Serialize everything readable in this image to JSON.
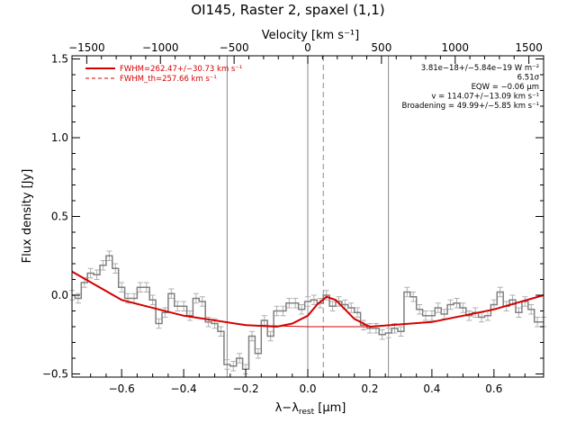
{
  "chart_data": {
    "type": "line",
    "title": "OI145, Raster 2, spaxel (1,1)",
    "xlabel": "λ−λ",
    "xlabel_sub": "rest",
    "xlabel_unit": " [μm]",
    "ylabel": "Flux density [Jy]",
    "top_xlabel": "Velocity [km s⁻¹]",
    "xlim": [
      -0.76,
      0.76
    ],
    "ylim": [
      -0.52,
      1.52
    ],
    "top_xlim": [
      -1600,
      1600
    ],
    "x_ticks": [
      -0.6,
      -0.4,
      -0.2,
      0.0,
      0.2,
      0.4,
      0.6
    ],
    "x_tick_labels": [
      "−0.6",
      "−0.4",
      "−0.2",
      "0.0",
      "0.2",
      "0.4",
      "0.6"
    ],
    "y_ticks": [
      -0.5,
      0.0,
      0.5,
      1.0,
      1.5
    ],
    "y_tick_labels": [
      "−0.5",
      "0.0",
      "0.5",
      "1.0",
      "1.5"
    ],
    "top_ticks": [
      -1500,
      -1000,
      -500,
      0,
      500,
      1000,
      1500
    ],
    "top_tick_labels": [
      "−1500",
      "−1000",
      "−500",
      "0",
      "500",
      "1000",
      "1500"
    ],
    "vertical_lines": [
      -0.26,
      0.0,
      0.26
    ],
    "dashed_vertical_line": 0.05,
    "spectrum": {
      "x": [
        -0.76,
        -0.74,
        -0.72,
        -0.7,
        -0.68,
        -0.66,
        -0.64,
        -0.62,
        -0.6,
        -0.58,
        -0.56,
        -0.54,
        -0.52,
        -0.5,
        -0.48,
        -0.46,
        -0.44,
        -0.42,
        -0.4,
        -0.38,
        -0.36,
        -0.34,
        -0.32,
        -0.3,
        -0.28,
        -0.26,
        -0.24,
        -0.22,
        -0.2,
        -0.18,
        -0.16,
        -0.14,
        -0.12,
        -0.1,
        -0.08,
        -0.06,
        -0.04,
        -0.02,
        0.0,
        0.02,
        0.04,
        0.06,
        0.08,
        0.1,
        0.12,
        0.14,
        0.16,
        0.18,
        0.2,
        0.22,
        0.24,
        0.26,
        0.28,
        0.3,
        0.32,
        0.34,
        0.36,
        0.38,
        0.4,
        0.42,
        0.44,
        0.46,
        0.48,
        0.5,
        0.52,
        0.54,
        0.56,
        0.58,
        0.6,
        0.62,
        0.64,
        0.66,
        0.68,
        0.7,
        0.72,
        0.74,
        0.76
      ],
      "y": [
        -0.0,
        -0.02,
        0.08,
        0.14,
        0.13,
        0.19,
        0.25,
        0.17,
        0.05,
        -0.02,
        -0.02,
        0.05,
        0.05,
        -0.03,
        -0.18,
        -0.11,
        0.01,
        -0.07,
        -0.07,
        -0.13,
        -0.02,
        -0.04,
        -0.17,
        -0.18,
        -0.23,
        -0.44,
        -0.45,
        -0.4,
        -0.47,
        -0.26,
        -0.37,
        -0.16,
        -0.26,
        -0.1,
        -0.1,
        -0.05,
        -0.05,
        -0.09,
        -0.04,
        -0.03,
        -0.05,
        -0.0,
        -0.07,
        -0.04,
        -0.06,
        -0.08,
        -0.11,
        -0.19,
        -0.21,
        -0.21,
        -0.25,
        -0.24,
        -0.21,
        -0.23,
        0.02,
        -0.01,
        -0.09,
        -0.13,
        -0.13,
        -0.08,
        -0.12,
        -0.06,
        -0.05,
        -0.08,
        -0.13,
        -0.11,
        -0.14,
        -0.13,
        -0.06,
        0.02,
        -0.07,
        -0.03,
        -0.11,
        -0.04,
        -0.09,
        -0.17,
        -0.17
      ],
      "err": 0.03
    },
    "continuum": {
      "x": [
        -0.76,
        -0.6,
        -0.4,
        -0.2,
        0.0,
        0.1,
        0.2,
        0.4,
        0.6,
        0.76
      ],
      "y": [
        0.15,
        -0.03,
        -0.13,
        -0.19,
        -0.2,
        -0.2,
        -0.2,
        -0.17,
        -0.09,
        0.0
      ]
    },
    "fit": {
      "x": [
        -0.76,
        -0.6,
        -0.4,
        -0.2,
        -0.1,
        -0.05,
        0.0,
        0.03,
        0.06,
        0.09,
        0.12,
        0.15,
        0.2,
        0.4,
        0.6,
        0.76
      ],
      "y": [
        0.15,
        -0.03,
        -0.13,
        -0.19,
        -0.2,
        -0.18,
        -0.13,
        -0.06,
        -0.01,
        -0.03,
        -0.09,
        -0.15,
        -0.2,
        -0.17,
        -0.09,
        0.0
      ]
    },
    "legend": [
      {
        "label": "FWHM=262.47+/−30.73 km s⁻¹",
        "style": "solid",
        "color": "#d40000"
      },
      {
        "label": "FWHM_th=257.66 km s⁻¹",
        "style": "dashed",
        "color": "#d40000"
      }
    ],
    "annotations": [
      "3.81e−18+/−5.84e−19 W m⁻²",
      "6.51σ",
      "EQW = −0.06 μm",
      "v = 114.07+/−13.09 km s⁻¹",
      "Broadening = 49.99+/−5.85 km s⁻¹"
    ],
    "colors": {
      "fit": "#d40000",
      "spectrum": "#808080",
      "error": "#b0b0b0",
      "vlines": "#888888"
    }
  }
}
